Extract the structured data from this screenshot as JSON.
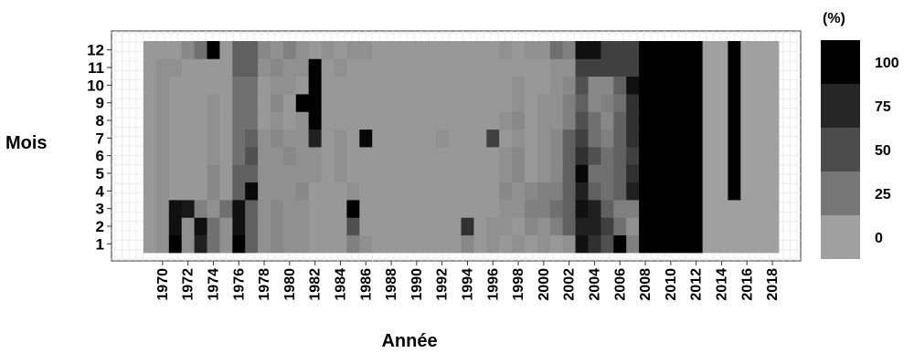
{
  "chart_data": {
    "type": "heatmap",
    "title": "",
    "xlabel": "Année",
    "ylabel": "Mois",
    "x_years": [
      1969,
      1970,
      1971,
      1972,
      1973,
      1974,
      1975,
      1976,
      1977,
      1978,
      1979,
      1980,
      1981,
      1982,
      1983,
      1984,
      1985,
      1986,
      1987,
      1988,
      1989,
      1990,
      1991,
      1992,
      1993,
      1994,
      1995,
      1996,
      1997,
      1998,
      1999,
      2000,
      2001,
      2002,
      2003,
      2004,
      2005,
      2006,
      2007,
      2008,
      2009,
      2010,
      2011,
      2012,
      2013,
      2014,
      2015,
      2016,
      2017,
      2018
    ],
    "x_tick_labels": [
      "1970",
      "1972",
      "1974",
      "1976",
      "1978",
      "1980",
      "1982",
      "1984",
      "1986",
      "1988",
      "1990",
      "1992",
      "1994",
      "1996",
      "1998",
      "2000",
      "2002",
      "2004",
      "2006",
      "2008",
      "2010",
      "2012",
      "2014",
      "2016",
      "2018"
    ],
    "y_months": [
      1,
      2,
      3,
      4,
      5,
      6,
      7,
      8,
      9,
      10,
      11,
      12
    ],
    "y_tick_labels": [
      "1",
      "2",
      "3",
      "4",
      "5",
      "6",
      "7",
      "8",
      "9",
      "10",
      "11",
      "12"
    ],
    "zlim": [
      0,
      100
    ],
    "grid": true,
    "legend_position": "right",
    "legend": {
      "title": "(%)",
      "labels": [
        "100",
        "75",
        "50",
        "25",
        "0"
      ],
      "colors": [
        "#000000",
        "#262626",
        "#4c4c4c",
        "#777777",
        "#a0a0a0"
      ]
    },
    "color_low": "#a0a0a0",
    "color_high": "#000000",
    "values_by_month": {
      "12": [
        5,
        5,
        5,
        15,
        30,
        100,
        5,
        40,
        40,
        15,
        10,
        20,
        10,
        5,
        10,
        5,
        10,
        10,
        5,
        5,
        5,
        5,
        5,
        5,
        5,
        5,
        5,
        5,
        10,
        5,
        10,
        10,
        30,
        20,
        90,
        90,
        60,
        60,
        60,
        100,
        100,
        100,
        100,
        100,
        0,
        0,
        100,
        0,
        0,
        0
      ],
      "11": [
        5,
        10,
        10,
        5,
        5,
        5,
        5,
        40,
        40,
        10,
        15,
        10,
        10,
        100,
        5,
        10,
        5,
        5,
        5,
        5,
        5,
        5,
        5,
        5,
        5,
        5,
        5,
        5,
        5,
        5,
        5,
        5,
        10,
        10,
        60,
        60,
        60,
        60,
        60,
        100,
        100,
        100,
        100,
        100,
        0,
        0,
        100,
        0,
        0,
        0
      ],
      "10": [
        5,
        10,
        5,
        5,
        5,
        5,
        5,
        30,
        30,
        5,
        10,
        10,
        5,
        100,
        5,
        5,
        5,
        5,
        5,
        5,
        5,
        5,
        5,
        5,
        5,
        5,
        5,
        5,
        5,
        10,
        5,
        5,
        10,
        15,
        50,
        15,
        15,
        40,
        90,
        100,
        100,
        100,
        100,
        100,
        0,
        0,
        100,
        0,
        0,
        0
      ],
      "9": [
        5,
        10,
        5,
        5,
        5,
        10,
        5,
        30,
        30,
        5,
        15,
        5,
        100,
        100,
        5,
        5,
        5,
        5,
        5,
        5,
        5,
        5,
        5,
        5,
        5,
        5,
        5,
        5,
        5,
        10,
        5,
        10,
        10,
        20,
        40,
        15,
        20,
        30,
        70,
        100,
        100,
        100,
        100,
        100,
        0,
        0,
        100,
        0,
        0,
        0
      ],
      "8": [
        5,
        10,
        5,
        5,
        5,
        10,
        5,
        30,
        30,
        5,
        10,
        5,
        10,
        100,
        5,
        5,
        5,
        5,
        5,
        5,
        5,
        5,
        5,
        5,
        5,
        5,
        5,
        5,
        10,
        15,
        5,
        10,
        10,
        20,
        50,
        30,
        15,
        40,
        70,
        100,
        100,
        100,
        100,
        100,
        0,
        0,
        100,
        0,
        0,
        0
      ],
      "7": [
        5,
        10,
        5,
        5,
        5,
        10,
        5,
        30,
        40,
        10,
        15,
        10,
        10,
        80,
        5,
        10,
        5,
        95,
        5,
        5,
        5,
        5,
        5,
        10,
        5,
        5,
        5,
        60,
        5,
        10,
        5,
        10,
        15,
        40,
        60,
        30,
        20,
        40,
        70,
        100,
        100,
        100,
        100,
        100,
        0,
        0,
        100,
        0,
        0,
        0
      ],
      "6": [
        5,
        10,
        5,
        5,
        5,
        10,
        5,
        30,
        50,
        10,
        10,
        15,
        10,
        10,
        5,
        10,
        5,
        5,
        5,
        5,
        5,
        5,
        5,
        5,
        5,
        5,
        5,
        5,
        10,
        15,
        5,
        10,
        15,
        40,
        70,
        50,
        30,
        40,
        60,
        100,
        100,
        100,
        100,
        100,
        0,
        0,
        100,
        0,
        0,
        0
      ],
      "5": [
        5,
        10,
        5,
        5,
        5,
        15,
        5,
        40,
        40,
        10,
        10,
        10,
        10,
        10,
        5,
        10,
        5,
        5,
        5,
        5,
        5,
        5,
        5,
        5,
        5,
        5,
        5,
        5,
        10,
        15,
        5,
        10,
        15,
        40,
        95,
        30,
        30,
        40,
        70,
        100,
        100,
        100,
        100,
        100,
        0,
        0,
        100,
        0,
        0,
        0
      ],
      "4": [
        5,
        10,
        5,
        5,
        5,
        15,
        5,
        40,
        95,
        10,
        10,
        10,
        15,
        5,
        5,
        5,
        10,
        5,
        5,
        5,
        5,
        5,
        5,
        5,
        5,
        5,
        5,
        5,
        15,
        10,
        15,
        20,
        20,
        40,
        80,
        40,
        30,
        40,
        80,
        100,
        100,
        100,
        100,
        100,
        0,
        0,
        100,
        0,
        0,
        0
      ],
      "3": [
        5,
        10,
        90,
        85,
        20,
        10,
        30,
        90,
        40,
        10,
        15,
        10,
        10,
        5,
        5,
        5,
        100,
        5,
        5,
        5,
        5,
        5,
        5,
        5,
        5,
        5,
        5,
        5,
        10,
        10,
        20,
        20,
        30,
        40,
        90,
        80,
        40,
        20,
        20,
        100,
        100,
        100,
        100,
        100,
        0,
        0,
        0,
        0,
        0,
        0
      ],
      "2": [
        5,
        10,
        90,
        10,
        90,
        30,
        10,
        90,
        40,
        10,
        15,
        10,
        10,
        5,
        5,
        5,
        50,
        5,
        5,
        5,
        5,
        5,
        5,
        5,
        5,
        70,
        5,
        10,
        10,
        5,
        15,
        10,
        20,
        40,
        80,
        80,
        60,
        30,
        10,
        100,
        100,
        100,
        100,
        100,
        0,
        0,
        0,
        0,
        0,
        0
      ],
      "1": [
        5,
        10,
        100,
        10,
        80,
        30,
        10,
        100,
        40,
        10,
        15,
        10,
        10,
        5,
        5,
        5,
        20,
        10,
        5,
        5,
        5,
        5,
        5,
        5,
        5,
        15,
        5,
        10,
        5,
        10,
        5,
        10,
        5,
        10,
        90,
        70,
        50,
        100,
        20,
        100,
        100,
        100,
        100,
        100,
        0,
        0,
        0,
        0,
        0,
        0
      ]
    }
  }
}
